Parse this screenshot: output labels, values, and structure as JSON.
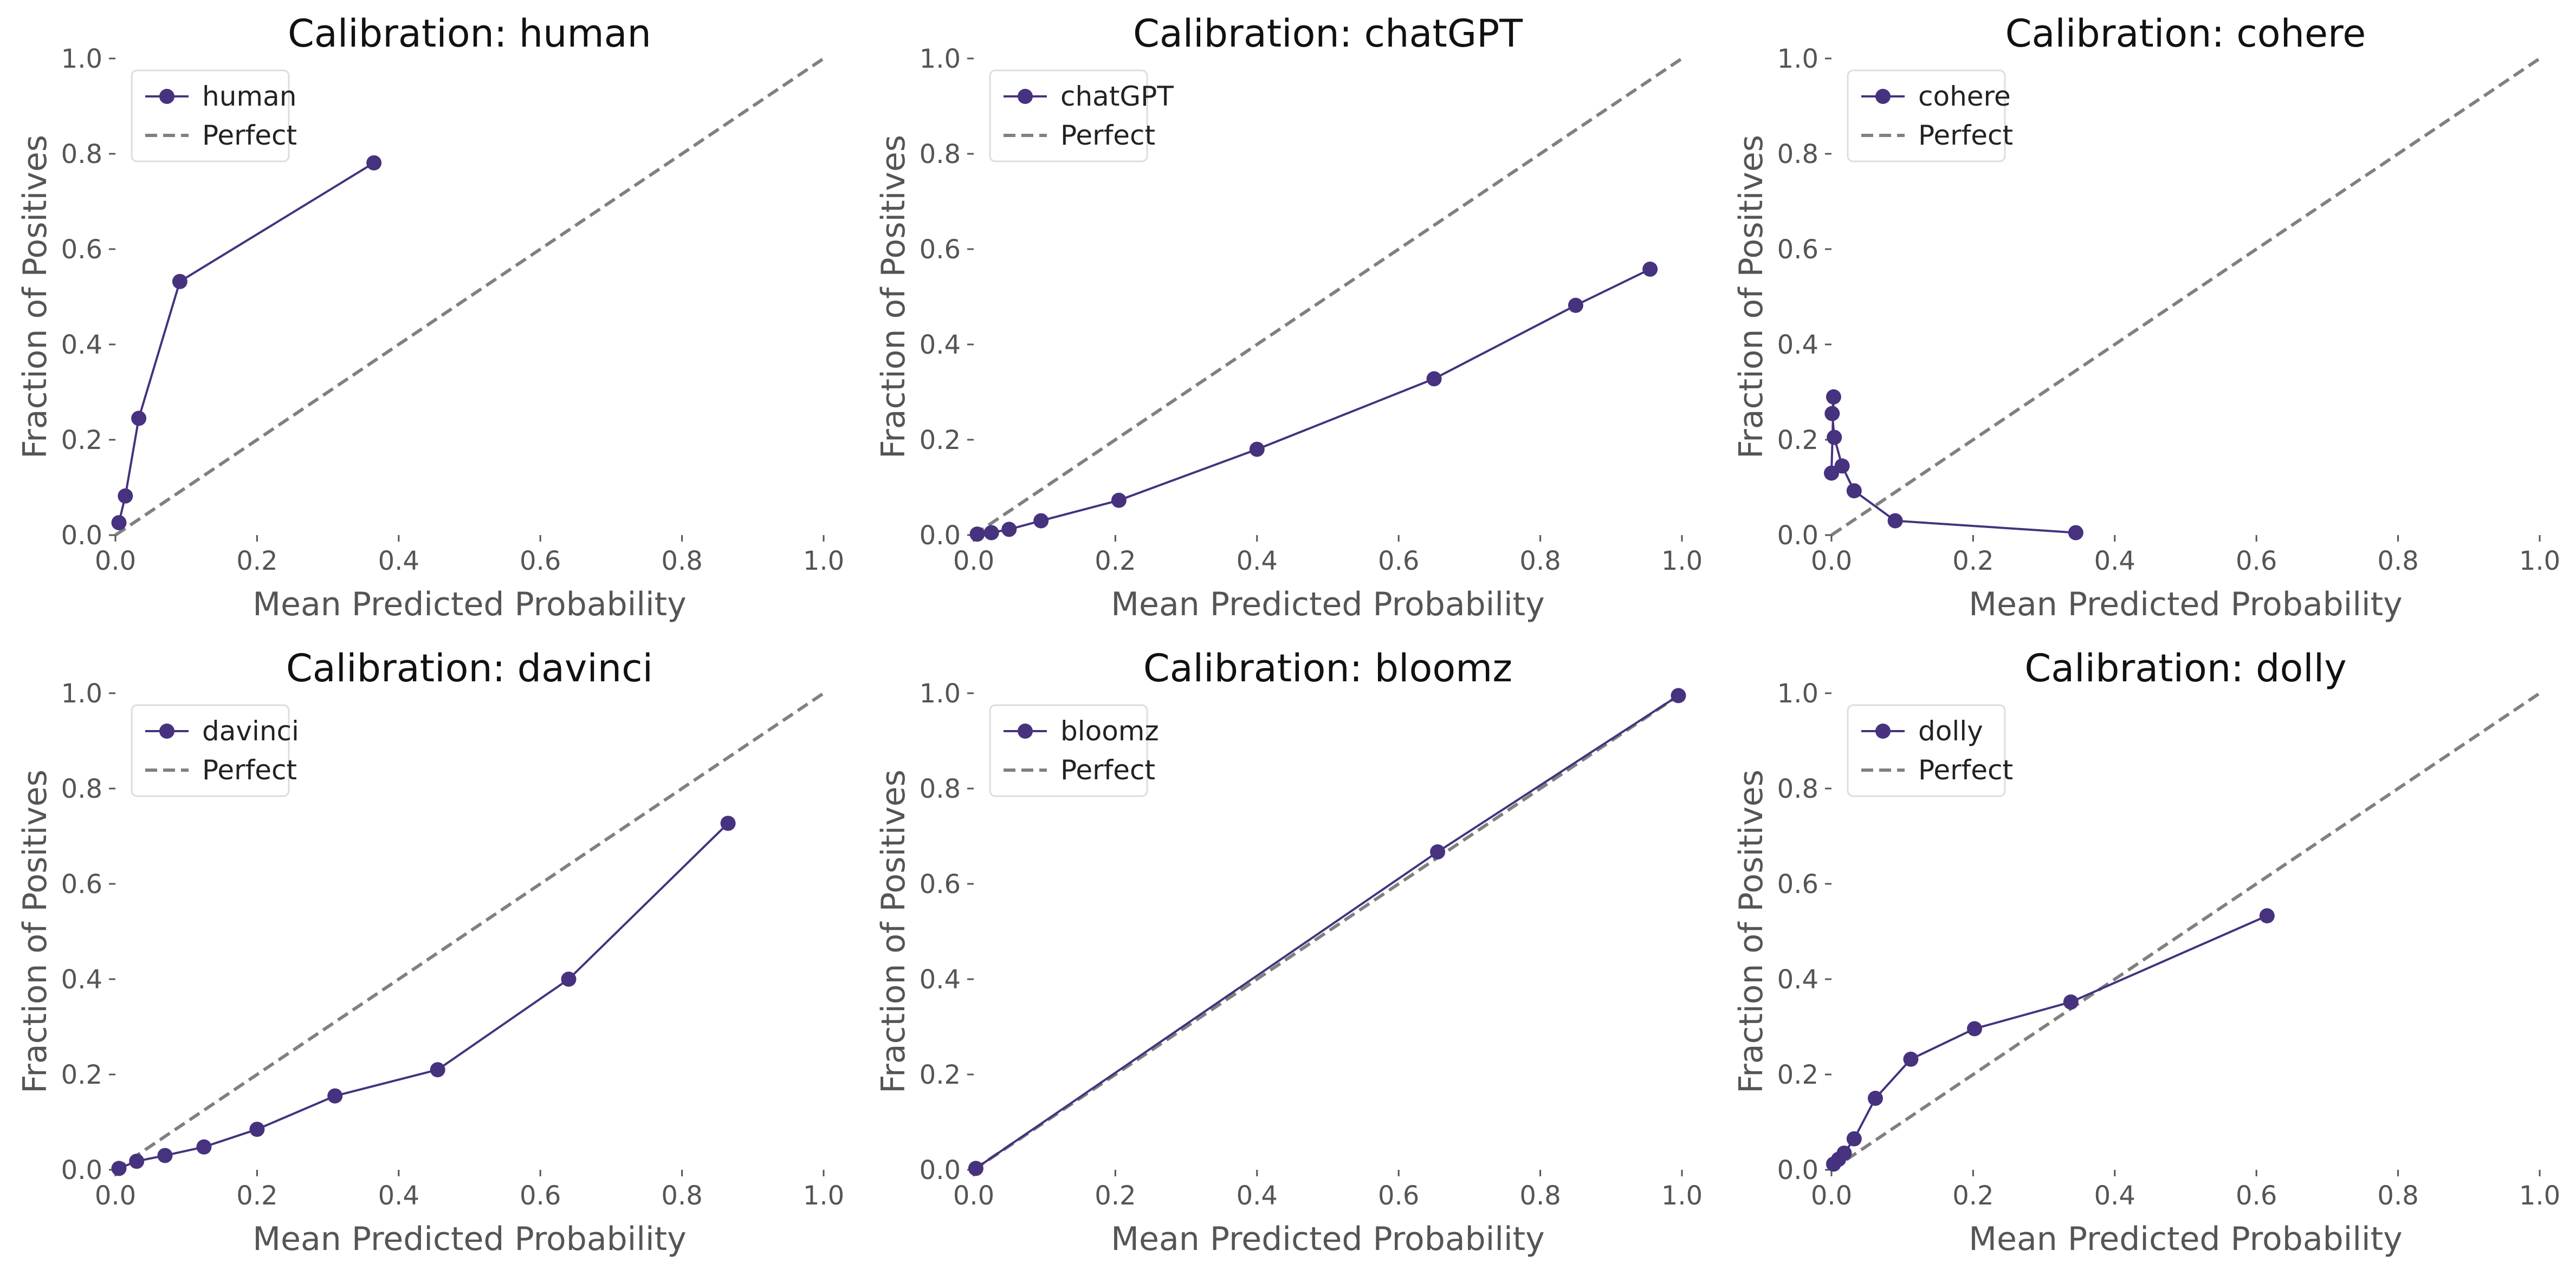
{
  "chart_data": [
    {
      "type": "line",
      "title": "Calibration: human",
      "xlabel": "Mean Predicted Probability",
      "ylabel": "Fraction of Positives",
      "xlim": [
        0,
        1
      ],
      "ylim": [
        0,
        1
      ],
      "xticks": [
        "0.0",
        "0.2",
        "0.4",
        "0.6",
        "0.8",
        "1.0"
      ],
      "yticks": [
        "0.0",
        "0.2",
        "0.4",
        "0.6",
        "0.8",
        "1.0"
      ],
      "grid": false,
      "legend_position": "top-left",
      "series": [
        {
          "name": "human",
          "style": "line-marker",
          "color": "#46327e",
          "x": [
            0.005,
            0.014,
            0.033,
            0.091,
            0.365
          ],
          "y": [
            0.026,
            0.082,
            0.245,
            0.532,
            0.781
          ]
        },
        {
          "name": "Perfect",
          "style": "dashed",
          "color": "#808080",
          "x": [
            0,
            1
          ],
          "y": [
            0,
            1
          ]
        }
      ]
    },
    {
      "type": "line",
      "title": "Calibration: chatGPT",
      "xlabel": "Mean Predicted Probability",
      "ylabel": "Fraction of Positives",
      "xlim": [
        0,
        1
      ],
      "ylim": [
        0,
        1
      ],
      "xticks": [
        "0.0",
        "0.2",
        "0.4",
        "0.6",
        "0.8",
        "1.0"
      ],
      "yticks": [
        "0.0",
        "0.2",
        "0.4",
        "0.6",
        "0.8",
        "1.0"
      ],
      "grid": false,
      "legend_position": "top-left",
      "series": [
        {
          "name": "chatGPT",
          "style": "line-marker",
          "color": "#46327e",
          "x": [
            0.005,
            0.025,
            0.05,
            0.095,
            0.205,
            0.4,
            0.65,
            0.85,
            0.955
          ],
          "y": [
            0.002,
            0.005,
            0.012,
            0.03,
            0.073,
            0.18,
            0.328,
            0.482,
            0.558
          ]
        },
        {
          "name": "Perfect",
          "style": "dashed",
          "color": "#808080",
          "x": [
            0,
            1
          ],
          "y": [
            0,
            1
          ]
        }
      ]
    },
    {
      "type": "line",
      "title": "Calibration: cohere",
      "xlabel": "Mean Predicted Probability",
      "ylabel": "Fraction of Positives",
      "xlim": [
        0,
        1
      ],
      "ylim": [
        0,
        1
      ],
      "xticks": [
        "0.0",
        "0.2",
        "0.4",
        "0.6",
        "0.8",
        "1.0"
      ],
      "yticks": [
        "0.0",
        "0.2",
        "0.4",
        "0.6",
        "0.8",
        "1.0"
      ],
      "grid": false,
      "legend_position": "top-left",
      "series": [
        {
          "name": "cohere",
          "style": "line-marker",
          "color": "#46327e",
          "x": [
            0.0,
            0.003,
            0.001,
            0.004,
            0.015,
            0.032,
            0.09,
            0.345
          ],
          "y": [
            0.13,
            0.29,
            0.255,
            0.205,
            0.145,
            0.093,
            0.03,
            0.005
          ]
        },
        {
          "name": "Perfect",
          "style": "dashed",
          "color": "#808080",
          "x": [
            0,
            1
          ],
          "y": [
            0,
            1
          ]
        }
      ]
    },
    {
      "type": "line",
      "title": "Calibration: davinci",
      "xlabel": "Mean Predicted Probability",
      "ylabel": "Fraction of Positives",
      "xlim": [
        0,
        1
      ],
      "ylim": [
        0,
        1
      ],
      "xticks": [
        "0.0",
        "0.2",
        "0.4",
        "0.6",
        "0.8",
        "1.0"
      ],
      "yticks": [
        "0.0",
        "0.2",
        "0.4",
        "0.6",
        "0.8",
        "1.0"
      ],
      "grid": false,
      "legend_position": "top-left",
      "series": [
        {
          "name": "davinci",
          "style": "line-marker",
          "color": "#46327e",
          "x": [
            0.005,
            0.03,
            0.07,
            0.125,
            0.2,
            0.31,
            0.455,
            0.64,
            0.865
          ],
          "y": [
            0.003,
            0.018,
            0.03,
            0.048,
            0.085,
            0.155,
            0.21,
            0.4,
            0.727
          ]
        },
        {
          "name": "Perfect",
          "style": "dashed",
          "color": "#808080",
          "x": [
            0,
            1
          ],
          "y": [
            0,
            1
          ]
        }
      ]
    },
    {
      "type": "line",
      "title": "Calibration: bloomz",
      "xlabel": "Mean Predicted Probability",
      "ylabel": "Fraction of Positives",
      "xlim": [
        0,
        1
      ],
      "ylim": [
        0,
        1
      ],
      "xticks": [
        "0.0",
        "0.2",
        "0.4",
        "0.6",
        "0.8",
        "1.0"
      ],
      "yticks": [
        "0.0",
        "0.2",
        "0.4",
        "0.6",
        "0.8",
        "1.0"
      ],
      "grid": false,
      "legend_position": "top-left",
      "series": [
        {
          "name": "bloomz",
          "style": "line-marker",
          "color": "#46327e",
          "x": [
            0.003,
            0.655,
            0.995
          ],
          "y": [
            0.003,
            0.667,
            0.995
          ]
        },
        {
          "name": "Perfect",
          "style": "dashed",
          "color": "#808080",
          "x": [
            0,
            1
          ],
          "y": [
            0,
            1
          ]
        }
      ]
    },
    {
      "type": "line",
      "title": "Calibration: dolly",
      "xlabel": "Mean Predicted Probability",
      "ylabel": "Fraction of Positives",
      "xlim": [
        0,
        1
      ],
      "ylim": [
        0,
        1
      ],
      "xticks": [
        "0.0",
        "0.2",
        "0.4",
        "0.6",
        "0.8",
        "1.0"
      ],
      "yticks": [
        "0.0",
        "0.2",
        "0.4",
        "0.6",
        "0.8",
        "1.0"
      ],
      "grid": false,
      "legend_position": "top-left",
      "series": [
        {
          "name": "dolly",
          "style": "line-marker",
          "color": "#46327e",
          "x": [
            0.003,
            0.01,
            0.018,
            0.032,
            0.062,
            0.112,
            0.202,
            0.338,
            0.615
          ],
          "y": [
            0.012,
            0.022,
            0.035,
            0.065,
            0.15,
            0.232,
            0.296,
            0.352,
            0.533
          ]
        },
        {
          "name": "Perfect",
          "style": "dashed",
          "color": "#808080",
          "x": [
            0,
            1
          ],
          "y": [
            0,
            1
          ]
        }
      ]
    }
  ]
}
